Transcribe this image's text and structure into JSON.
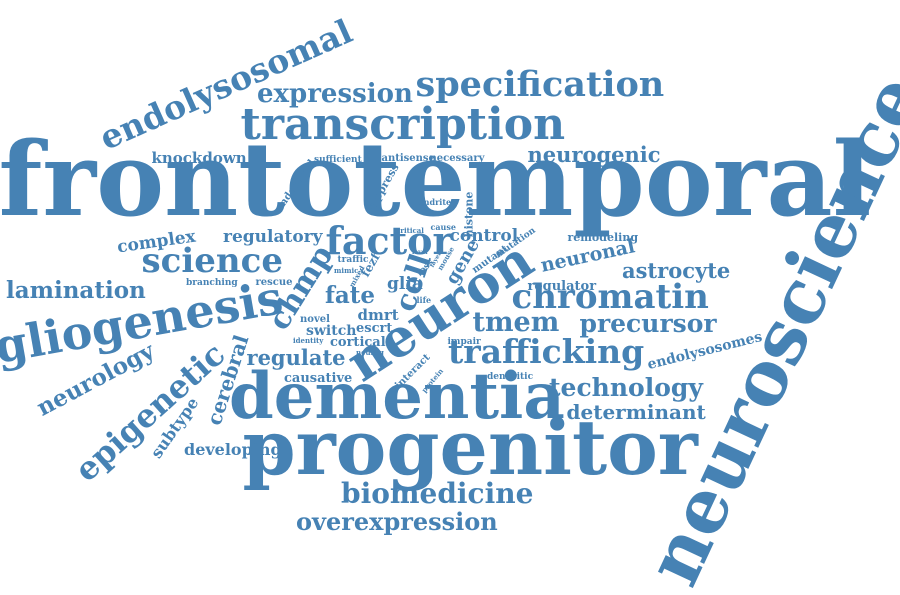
{
  "colors": {
    "word": "#4682b4",
    "background": "#ffffff"
  },
  "words": [
    {
      "id": "frontotemporal",
      "text": "frontotemporal"
    },
    {
      "id": "neuroscience",
      "text": "neuroscience"
    },
    {
      "id": "progenitor",
      "text": "progenitor"
    },
    {
      "id": "dementia",
      "text": "dementia"
    },
    {
      "id": "neuron",
      "text": "neuron"
    },
    {
      "id": "transcription",
      "text": "transcription"
    },
    {
      "id": "gliogenesis",
      "text": "gliogenesis"
    },
    {
      "id": "specification",
      "text": "specification"
    },
    {
      "id": "endolysosomal",
      "text": "endolysosomal"
    },
    {
      "id": "chromatin",
      "text": "chromatin"
    },
    {
      "id": "factor",
      "text": "factor"
    },
    {
      "id": "science",
      "text": "science"
    },
    {
      "id": "trafficking",
      "text": "trafficking"
    },
    {
      "id": "expression",
      "text": "expression"
    },
    {
      "id": "biomedicine",
      "text": "biomedicine"
    },
    {
      "id": "epigenetic",
      "text": "epigenetic"
    },
    {
      "id": "chmp",
      "text": "chmp"
    },
    {
      "id": "tmem",
      "text": "tmem"
    },
    {
      "id": "precursor",
      "text": "precursor"
    },
    {
      "id": "cell",
      "text": "cell"
    },
    {
      "id": "technology",
      "text": "technology"
    },
    {
      "id": "overexpression",
      "text": "overexpression"
    },
    {
      "id": "lamination",
      "text": "lamination"
    },
    {
      "id": "neurogenic",
      "text": "neurogenic"
    },
    {
      "id": "neuronal",
      "text": "neuronal"
    },
    {
      "id": "astrocyte",
      "text": "astrocyte"
    },
    {
      "id": "determinant",
      "text": "determinant"
    },
    {
      "id": "regulate",
      "text": "regulate"
    },
    {
      "id": "fate",
      "text": "fate"
    },
    {
      "id": "neurology",
      "text": "neurology"
    },
    {
      "id": "cerebral",
      "text": "cerebral"
    },
    {
      "id": "control",
      "text": "control"
    },
    {
      "id": "complex",
      "text": "complex"
    },
    {
      "id": "regulatory",
      "text": "regulatory"
    },
    {
      "id": "knockdown",
      "text": "knockdown"
    },
    {
      "id": "developing",
      "text": "developing"
    },
    {
      "id": "subtype",
      "text": "subtype"
    },
    {
      "id": "endolysosomes",
      "text": "endolysosomes"
    },
    {
      "id": "glia",
      "text": "glia"
    },
    {
      "id": "gene",
      "text": "gene"
    },
    {
      "id": "causative",
      "text": "causative"
    },
    {
      "id": "regulator",
      "text": "regulator"
    },
    {
      "id": "dmrt",
      "text": "dmrt"
    },
    {
      "id": "switch",
      "text": "switch"
    },
    {
      "id": "escrt",
      "text": "escrt"
    },
    {
      "id": "cortical",
      "text": "cortical"
    },
    {
      "id": "remodeling",
      "text": "remodeling"
    },
    {
      "id": "histone",
      "text": "histone"
    },
    {
      "id": "suppress",
      "text": "suppress"
    },
    {
      "id": "endosomal",
      "text": "endosomal"
    },
    {
      "id": "antisense",
      "text": "antisense"
    },
    {
      "id": "necessary",
      "text": "necessary"
    },
    {
      "id": "sufficient",
      "text": "sufficient"
    },
    {
      "id": "rescue",
      "text": "rescue"
    },
    {
      "id": "branching",
      "text": "branching"
    },
    {
      "id": "novel",
      "text": "novel"
    },
    {
      "id": "traffic",
      "text": "traffic"
    },
    {
      "id": "mutant",
      "text": "mutant"
    },
    {
      "id": "mutation",
      "text": "mutation"
    },
    {
      "id": "interact",
      "text": "interact"
    },
    {
      "id": "impair",
      "text": "impair"
    },
    {
      "id": "dendritic",
      "text": "dendritic"
    },
    {
      "id": "dendrite",
      "text": "dendrite"
    },
    {
      "id": "cause",
      "text": "cause"
    },
    {
      "id": "critical",
      "text": "critical"
    },
    {
      "id": "loss",
      "text": "loss"
    },
    {
      "id": "life",
      "text": "life"
    },
    {
      "id": "identity",
      "text": "identity"
    },
    {
      "id": "mimic",
      "text": "mimic"
    },
    {
      "id": "neurog",
      "text": "neurog"
    },
    {
      "id": "protein",
      "text": "protein"
    },
    {
      "id": "mouse",
      "text": "mouse"
    },
    {
      "id": "layer",
      "text": "layer"
    },
    {
      "id": "mixed",
      "text": "mixed"
    },
    {
      "id": "level",
      "text": "level"
    },
    {
      "id": "fezf",
      "text": "fezf"
    }
  ]
}
